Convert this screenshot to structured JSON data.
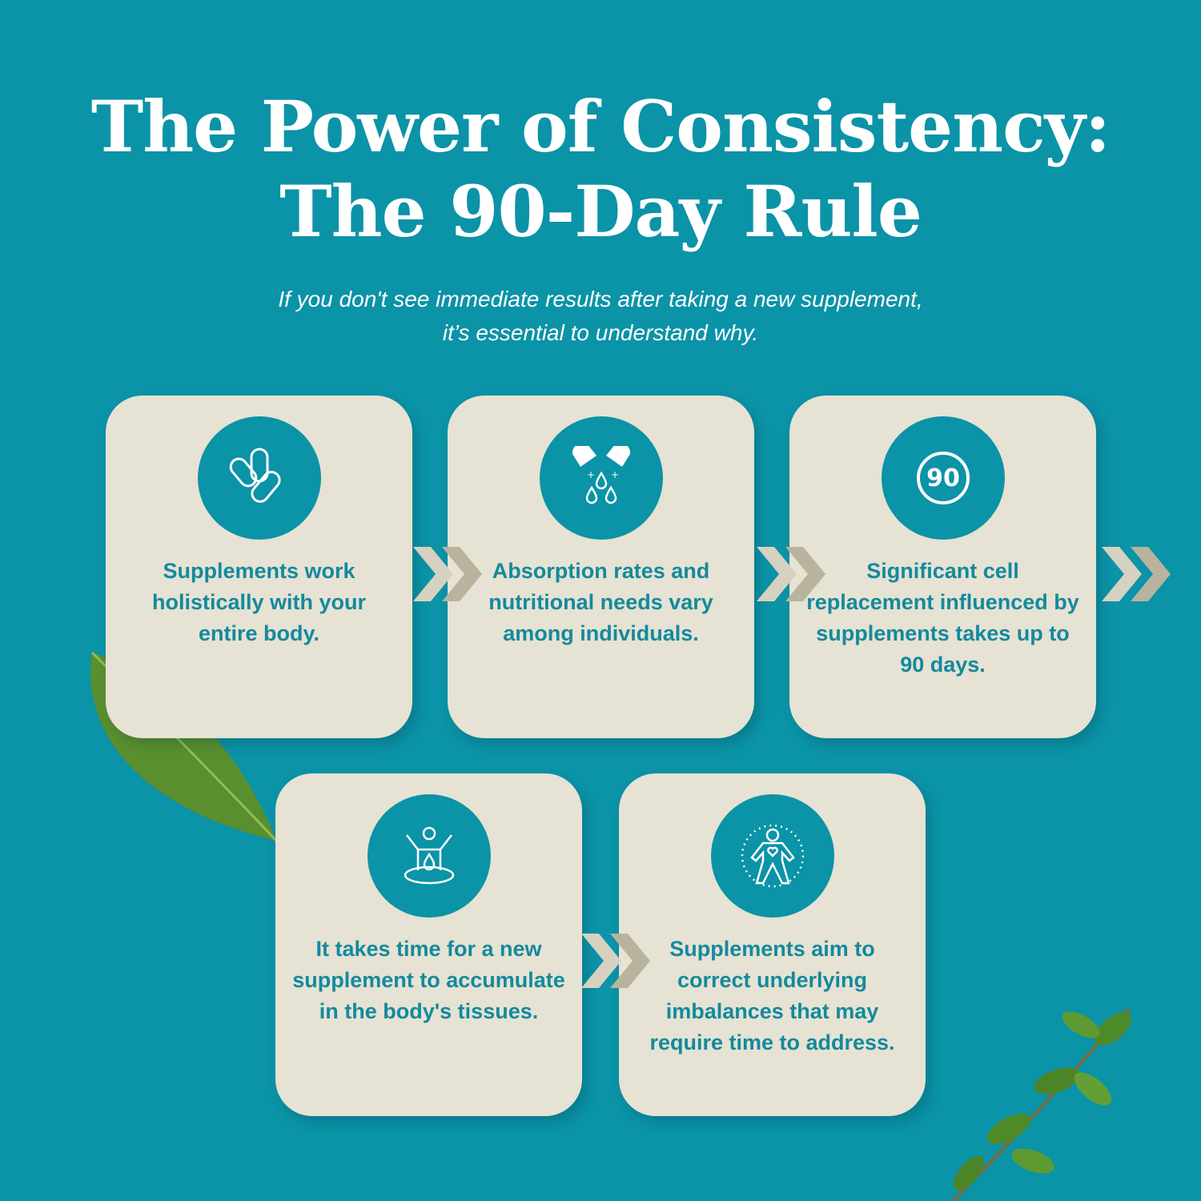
{
  "title": {
    "line1": "The Power of Consistency:",
    "line2": "The 90-Day Rule"
  },
  "subtitle": {
    "line1": "If you don't see immediate results after taking a new supplement,",
    "line2": "it’s essential to understand why."
  },
  "colors": {
    "background": "#0b93a7",
    "card": "#e6e2d4",
    "text": "#138a9c",
    "chevron_light": "#d6d1c0",
    "chevron_dark": "#b9b39d"
  },
  "cards": [
    {
      "icon": "capsules-icon",
      "text": "Supplements work holistically with your entire body."
    },
    {
      "icon": "capsule-drops-icon",
      "text": "Absorption rates and nutritional needs vary among individuals."
    },
    {
      "icon": "ninety-badge-icon",
      "icon_label": "90",
      "text": "Significant cell replacement influenced by supplements takes up to 90 days."
    },
    {
      "icon": "body-absorption-icon",
      "text": "It takes time for a new supplement to accumulate in the body's tissues."
    },
    {
      "icon": "body-heart-aura-icon",
      "text": "Supplements aim to correct underlying imbalances that may require time to address."
    }
  ]
}
